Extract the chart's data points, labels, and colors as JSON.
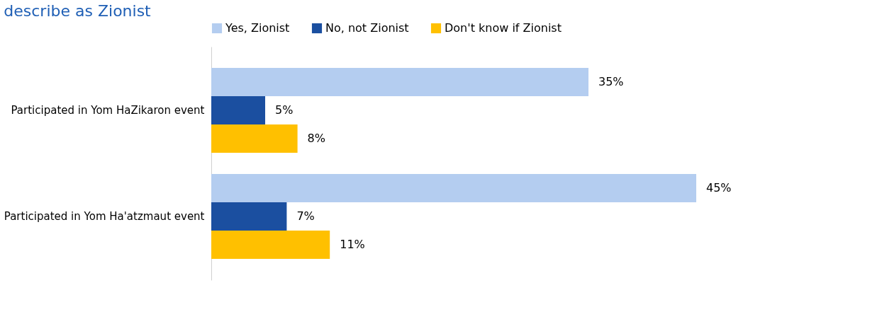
{
  "chart_data": {
    "type": "bar",
    "orientation": "horizontal",
    "title": "describe as Zionist",
    "categories": [
      "Participated in Yom HaZikaron event",
      "Participated in Yom Ha'atzmaut event"
    ],
    "series": [
      {
        "name": "Yes, Zionist",
        "color": "#b4cdf0",
        "values": [
          35,
          45
        ],
        "value_labels": [
          "35%",
          "45%"
        ]
      },
      {
        "name": "No, not Zionist",
        "color": "#1b4fa0",
        "values": [
          5,
          7
        ],
        "value_labels": [
          "5%",
          "7%"
        ]
      },
      {
        "name": "Don't know if Zionist",
        "color": "#ffc000",
        "values": [
          8,
          11
        ],
        "value_labels": [
          "8%",
          "11%"
        ]
      }
    ],
    "xlim": [
      0,
      50
    ],
    "tick_labels": "y",
    "grid": false,
    "legend": "top"
  }
}
